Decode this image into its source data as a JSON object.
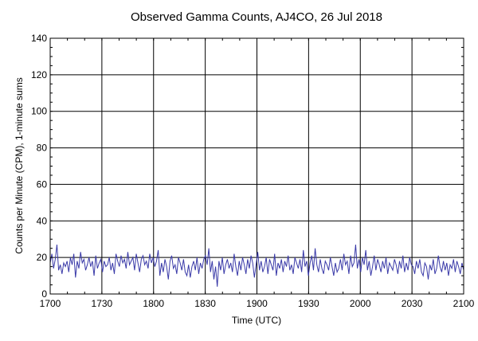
{
  "chart_data": {
    "type": "line",
    "title": "Observed Gamma Counts, AJ4CO, 26 Jul 2018",
    "xlabel": "Time (UTC)",
    "ylabel": "Counts per Minute (CPM), 1-minute sums",
    "xlim": [
      0,
      240
    ],
    "ylim": [
      0,
      140
    ],
    "x_tick_labels": [
      "1700",
      "1730",
      "1800",
      "1830",
      "1900",
      "1930",
      "2000",
      "2030",
      "2100"
    ],
    "y_tick_labels": [
      "0",
      "20",
      "40",
      "60",
      "80",
      "100",
      "120",
      "140"
    ],
    "grid": true,
    "colors": {
      "series": "#3a3aa8",
      "grid": "#000000"
    },
    "series": [
      {
        "values": [
          17,
          22,
          14,
          19,
          27,
          13,
          16,
          11,
          17,
          15,
          18,
          12,
          20,
          16,
          22,
          9,
          18,
          14,
          23,
          17,
          19,
          13,
          16,
          20,
          15,
          18,
          10,
          21,
          14,
          17,
          19,
          12,
          18,
          15,
          16,
          20,
          13,
          17,
          11,
          22,
          18,
          15,
          21,
          17,
          19,
          14,
          23,
          16,
          18,
          20,
          13,
          22,
          17,
          12,
          19,
          21,
          16,
          18,
          14,
          22,
          17,
          20,
          15,
          18,
          24,
          10,
          17,
          12,
          19,
          15,
          8,
          18,
          21,
          14,
          16,
          11,
          20,
          17,
          13,
          19,
          12,
          10,
          16,
          9,
          15,
          18,
          13,
          20,
          11,
          17,
          14,
          19,
          21,
          16,
          25,
          12,
          18,
          8,
          15,
          4,
          18,
          13,
          20,
          11,
          16,
          19,
          14,
          17,
          12,
          22,
          15,
          10,
          18,
          13,
          20,
          16,
          11,
          19,
          14,
          21,
          17,
          9,
          16,
          23,
          13,
          18,
          12,
          15,
          20,
          11,
          19,
          16,
          13,
          22,
          10,
          17,
          14,
          19,
          12,
          18,
          15,
          21,
          13,
          16,
          11,
          20,
          17,
          14,
          19,
          12,
          24,
          15,
          18,
          10,
          17,
          21,
          13,
          25,
          16,
          12,
          19,
          14,
          11,
          18,
          16,
          13,
          20,
          15,
          10,
          17,
          12,
          14,
          19,
          13,
          22,
          16,
          18,
          11,
          21,
          15,
          17,
          27,
          14,
          19,
          12,
          20,
          16,
          24,
          13,
          18,
          10,
          15,
          21,
          13,
          19,
          16,
          12,
          18,
          14,
          20,
          11,
          17,
          15,
          13,
          19,
          16,
          11,
          18,
          14,
          21,
          12,
          17,
          13,
          20,
          16,
          15,
          11,
          18,
          14,
          19,
          12,
          10,
          17,
          15,
          8,
          16,
          13,
          19,
          11,
          14,
          21,
          15,
          12,
          18,
          13,
          17,
          10,
          16,
          14,
          19,
          12,
          18,
          15,
          11,
          17,
          13
        ]
      }
    ]
  }
}
